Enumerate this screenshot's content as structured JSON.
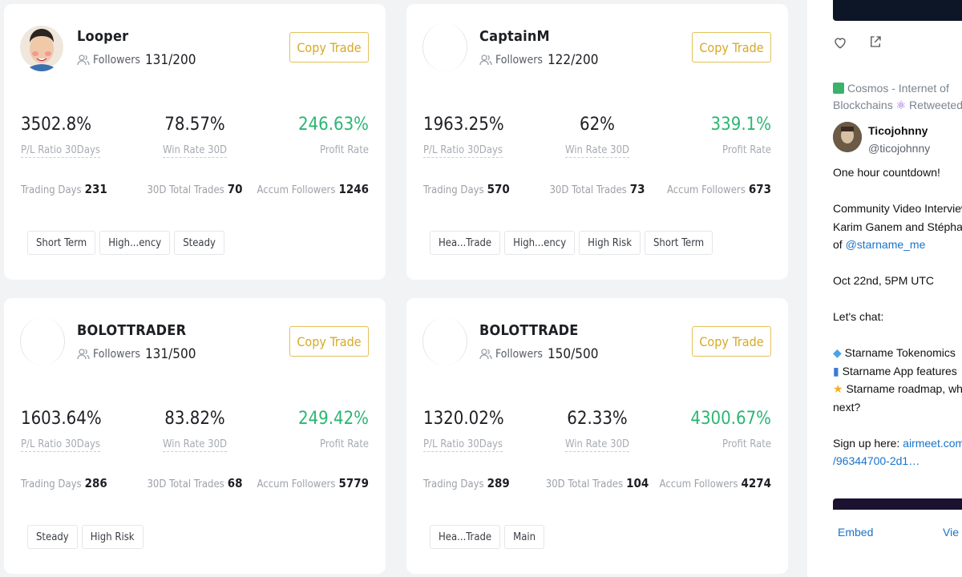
{
  "traders": [
    {
      "name": "Looper",
      "followers_label": "Followers",
      "followers": "131/200",
      "copy_label": "Copy Trade",
      "pl_ratio": "3502.8%",
      "pl_ratio_label": "P/L Ratio 30Days",
      "win_rate": "78.57%",
      "win_rate_label": "Win Rate 30D",
      "profit_rate": "246.63%",
      "profit_rate_label": "Profit Rate",
      "trading_days_label": "Trading Days",
      "trading_days": "231",
      "total_trades_label": "30D Total Trades",
      "total_trades": "70",
      "accum_followers_label": "Accum Followers",
      "accum_followers": "1246",
      "tags": [
        "Short Term",
        "High...ency",
        "Steady"
      ]
    },
    {
      "name": "CaptainM",
      "followers_label": "Followers",
      "followers": "122/200",
      "copy_label": "Copy Trade",
      "pl_ratio": "1963.25%",
      "pl_ratio_label": "P/L Ratio 30Days",
      "win_rate": "62%",
      "win_rate_label": "Win Rate 30D",
      "profit_rate": "339.1%",
      "profit_rate_label": "Profit Rate",
      "trading_days_label": "Trading Days",
      "trading_days": "570",
      "total_trades_label": "30D Total Trades",
      "total_trades": "73",
      "accum_followers_label": "Accum Followers",
      "accum_followers": "673",
      "tags": [
        "Hea...Trade",
        "High...ency",
        "High Risk",
        "Short Term"
      ]
    },
    {
      "name": "BOLOTTRADER",
      "followers_label": "Followers",
      "followers": "131/500",
      "copy_label": "Copy Trade",
      "pl_ratio": "1603.64%",
      "pl_ratio_label": "P/L Ratio 30Days",
      "win_rate": "83.82%",
      "win_rate_label": "Win Rate 30D",
      "profit_rate": "249.42%",
      "profit_rate_label": "Profit Rate",
      "trading_days_label": "Trading Days",
      "trading_days": "286",
      "total_trades_label": "30D Total Trades",
      "total_trades": "68",
      "accum_followers_label": "Accum Followers",
      "accum_followers": "5779",
      "tags": [
        "Steady",
        "High Risk"
      ]
    },
    {
      "name": "BOLOTTRADE",
      "followers_label": "Followers",
      "followers": "150/500",
      "copy_label": "Copy Trade",
      "pl_ratio": "1320.02%",
      "pl_ratio_label": "P/L Ratio 30Days",
      "win_rate": "62.33%",
      "win_rate_label": "Win Rate 30D",
      "profit_rate": "4300.67%",
      "profit_rate_label": "Profit Rate",
      "trading_days_label": "Trading Days",
      "trading_days": "289",
      "total_trades_label": "30D Total Trades",
      "total_trades": "104",
      "accum_followers_label": "Accum Followers",
      "accum_followers": "4274",
      "tags": [
        "Hea...Trade",
        "Main"
      ]
    }
  ],
  "colors": {
    "profit_green": "#2bb673",
    "copy_gold": "#d6a927",
    "link_blue": "#1a73c9"
  },
  "twitter": {
    "retweet_line1": "Cosmos - Internet of",
    "retweet_line2": "Blockchains",
    "retweeted_label": "Retweeted",
    "author_name": "Ticojohnny",
    "author_handle": "@ticojohnny",
    "line_1": "One hour countdown!",
    "line_2": "Community Video Interview",
    "line_3": "Karim Ganem and Stéphan",
    "line_4_prefix": "of ",
    "line_4_link": "@starname_me",
    "line_5": "Oct 22nd, 5PM UTC",
    "line_6": "Let's chat:",
    "bullet_1": "Starname Tokenomics",
    "bullet_2": "Starname App features",
    "bullet_3": "Starname roadmap, wh",
    "bullet_3b": "next?",
    "signup_prefix": "Sign up here: ",
    "signup_link": "airmeet.com/",
    "signup_link2": "/96344700-2d1…",
    "embed_label": "Embed",
    "view_label": "Vie",
    "icons": [
      "heart-icon",
      "share-icon",
      "retweet-icon",
      "gem-icon",
      "phone-icon",
      "star-icon"
    ]
  }
}
